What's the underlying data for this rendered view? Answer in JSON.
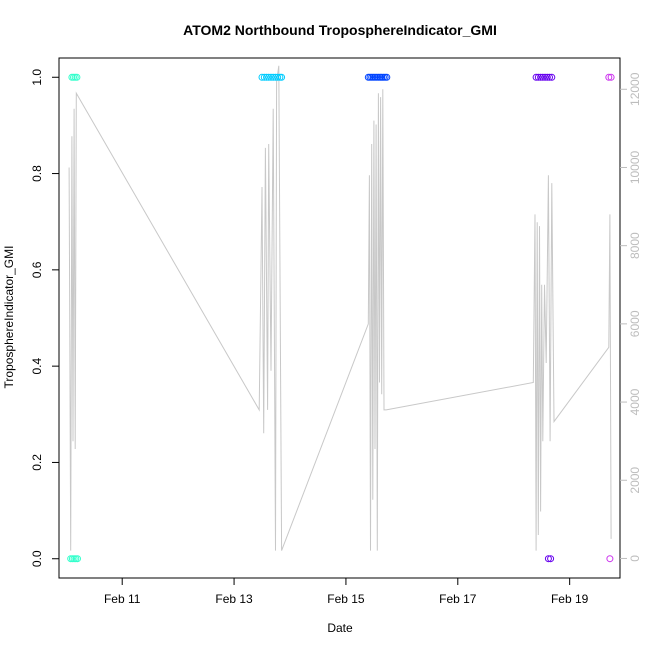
{
  "chart_data": {
    "type": "scatter",
    "title": "ATOM2 Northbound TroposphereIndicator_GMI",
    "xlabel": "Date",
    "ylabel": "TroposphereIndicator_GMI",
    "x_unit": "days in February",
    "xlim": [
      9.87,
      19.9
    ],
    "ylim": [
      -0.04,
      1.04
    ],
    "y2lim": [
      -500,
      12800
    ],
    "x_ticks": [
      {
        "value": 11,
        "label": "Feb 11"
      },
      {
        "value": 13,
        "label": "Feb 13"
      },
      {
        "value": 15,
        "label": "Feb 15"
      },
      {
        "value": 17,
        "label": "Feb 17"
      },
      {
        "value": 19,
        "label": "Feb 19"
      }
    ],
    "y_ticks": [
      {
        "value": 0.0,
        "label": "0.0"
      },
      {
        "value": 0.2,
        "label": "0.2"
      },
      {
        "value": 0.4,
        "label": "0.4"
      },
      {
        "value": 0.6,
        "label": "0.6"
      },
      {
        "value": 0.8,
        "label": "0.8"
      },
      {
        "value": 1.0,
        "label": "1.0"
      }
    ],
    "y2_ticks": [
      {
        "value": 0,
        "label": "0"
      },
      {
        "value": 2000,
        "label": "2000"
      },
      {
        "value": 4000,
        "label": "4000"
      },
      {
        "value": 6000,
        "label": "6000"
      },
      {
        "value": 8000,
        "label": "8000"
      },
      {
        "value": 10000,
        "label": "10000"
      },
      {
        "value": 12000,
        "label": "12000"
      }
    ],
    "grid": false,
    "colors": {
      "altitude_line": "#c8c8c8",
      "frame": "#000000"
    },
    "points": [
      {
        "x": 10.08,
        "y": 0,
        "color": "#33ffcc"
      },
      {
        "x": 10.11,
        "y": 0,
        "color": "#33ffcc"
      },
      {
        "x": 10.14,
        "y": 0,
        "color": "#33ffcc"
      },
      {
        "x": 10.17,
        "y": 0,
        "color": "#33ffcc"
      },
      {
        "x": 10.2,
        "y": 0,
        "color": "#33ffcc"
      },
      {
        "x": 10.1,
        "y": 1,
        "color": "#33ffcc"
      },
      {
        "x": 10.13,
        "y": 1,
        "color": "#33ffcc"
      },
      {
        "x": 10.16,
        "y": 1,
        "color": "#33ffcc"
      },
      {
        "x": 10.19,
        "y": 1,
        "color": "#33ffcc"
      },
      {
        "x": 13.5,
        "y": 1,
        "color": "#00ccff"
      },
      {
        "x": 13.54,
        "y": 1,
        "color": "#00ccff"
      },
      {
        "x": 13.58,
        "y": 1,
        "color": "#00ccff"
      },
      {
        "x": 13.62,
        "y": 1,
        "color": "#00ccff"
      },
      {
        "x": 13.66,
        "y": 1,
        "color": "#00ccff"
      },
      {
        "x": 13.7,
        "y": 1,
        "color": "#00ccff"
      },
      {
        "x": 13.74,
        "y": 1,
        "color": "#00ccff"
      },
      {
        "x": 13.78,
        "y": 1,
        "color": "#00ccff"
      },
      {
        "x": 13.82,
        "y": 1,
        "color": "#00ccff"
      },
      {
        "x": 13.85,
        "y": 1,
        "color": "#00ccff"
      },
      {
        "x": 15.4,
        "y": 1,
        "color": "#0044ff"
      },
      {
        "x": 15.43,
        "y": 1,
        "color": "#0044ff"
      },
      {
        "x": 15.46,
        "y": 1,
        "color": "#0044ff"
      },
      {
        "x": 15.49,
        "y": 1,
        "color": "#0044ff"
      },
      {
        "x": 15.52,
        "y": 1,
        "color": "#0044ff"
      },
      {
        "x": 15.55,
        "y": 1,
        "color": "#0044ff"
      },
      {
        "x": 15.58,
        "y": 1,
        "color": "#0044ff"
      },
      {
        "x": 15.61,
        "y": 1,
        "color": "#0044ff"
      },
      {
        "x": 15.64,
        "y": 1,
        "color": "#0044ff"
      },
      {
        "x": 15.67,
        "y": 1,
        "color": "#0044ff"
      },
      {
        "x": 15.7,
        "y": 1,
        "color": "#0044ff"
      },
      {
        "x": 15.73,
        "y": 1,
        "color": "#0044ff"
      },
      {
        "x": 18.4,
        "y": 1,
        "color": "#6600ee"
      },
      {
        "x": 18.44,
        "y": 1,
        "color": "#6600ee"
      },
      {
        "x": 18.48,
        "y": 1,
        "color": "#6600ee"
      },
      {
        "x": 18.52,
        "y": 1,
        "color": "#6600ee"
      },
      {
        "x": 18.56,
        "y": 1,
        "color": "#6600ee"
      },
      {
        "x": 18.6,
        "y": 1,
        "color": "#6600ee"
      },
      {
        "x": 18.64,
        "y": 1,
        "color": "#6600ee"
      },
      {
        "x": 18.68,
        "y": 1,
        "color": "#6600ee"
      },
      {
        "x": 18.62,
        "y": 0,
        "color": "#6600ee"
      },
      {
        "x": 18.66,
        "y": 0,
        "color": "#6600ee"
      },
      {
        "x": 19.7,
        "y": 1,
        "color": "#cc33ee"
      },
      {
        "x": 19.74,
        "y": 1,
        "color": "#cc33ee"
      },
      {
        "x": 19.72,
        "y": 0,
        "color": "#cc33ee"
      }
    ],
    "altitude_series": [
      [
        10.05,
        10000
      ],
      [
        10.08,
        200
      ],
      [
        10.1,
        10800
      ],
      [
        10.12,
        3000
      ],
      [
        10.14,
        11500
      ],
      [
        10.16,
        2800
      ],
      [
        10.18,
        11900
      ],
      [
        13.45,
        3800
      ],
      [
        13.5,
        9500
      ],
      [
        13.53,
        3200
      ],
      [
        13.56,
        10500
      ],
      [
        13.6,
        3800
      ],
      [
        13.62,
        10600
      ],
      [
        13.66,
        4800
      ],
      [
        13.7,
        11500
      ],
      [
        13.74,
        200
      ],
      [
        13.76,
        12200
      ],
      [
        13.8,
        12600
      ],
      [
        13.85,
        200
      ],
      [
        15.4,
        6000
      ],
      [
        15.42,
        9800
      ],
      [
        15.44,
        200
      ],
      [
        15.46,
        10600
      ],
      [
        15.48,
        1500
      ],
      [
        15.5,
        11200
      ],
      [
        15.52,
        2800
      ],
      [
        15.54,
        11100
      ],
      [
        15.56,
        200
      ],
      [
        15.58,
        11900
      ],
      [
        15.6,
        4500
      ],
      [
        15.62,
        11800
      ],
      [
        15.64,
        4200
      ],
      [
        15.66,
        12000
      ],
      [
        15.68,
        3800
      ],
      [
        15.72,
        3800
      ],
      [
        18.35,
        4500
      ],
      [
        18.38,
        8800
      ],
      [
        18.4,
        200
      ],
      [
        18.42,
        8600
      ],
      [
        18.44,
        600
      ],
      [
        18.46,
        8500
      ],
      [
        18.48,
        1200
      ],
      [
        18.5,
        7000
      ],
      [
        18.52,
        3000
      ],
      [
        18.55,
        7000
      ],
      [
        18.58,
        5000
      ],
      [
        18.62,
        9800
      ],
      [
        18.65,
        3000
      ],
      [
        18.68,
        9600
      ],
      [
        18.72,
        3500
      ],
      [
        19.7,
        5400
      ],
      [
        19.72,
        8800
      ],
      [
        19.74,
        500
      ]
    ]
  }
}
